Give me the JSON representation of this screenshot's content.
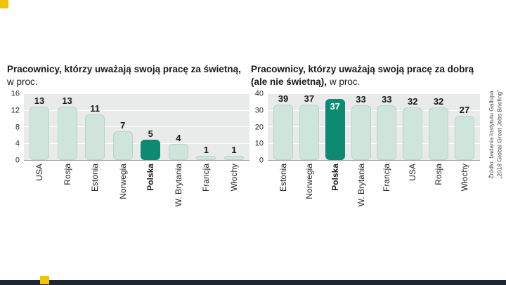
{
  "branding": {
    "accent_yellow": "#f2c300",
    "footer_bar_color": "#1d2733"
  },
  "source_note": "Źródło: badania Instytutu Gallupa\n„2018 Global Great Jobs Briefing”",
  "chart_data": [
    {
      "type": "bar",
      "title_bold": "Pracownicy, którzy uważają swoją pracę za świetną,",
      "title_regular": "w proc.",
      "categories": [
        "USA",
        "Rosja",
        "Estonia",
        "Norwegia",
        "Polska",
        "W. Brytania",
        "Francja",
        "Włochy"
      ],
      "values": [
        13,
        13,
        11,
        7,
        5,
        4,
        1,
        1
      ],
      "ylim": [
        0,
        16
      ],
      "yticks": [
        0,
        4,
        8,
        12,
        16
      ],
      "highlight_category": "Polska",
      "highlight_value_inside": false,
      "bar_color": "#cfe4da",
      "bar_border_color": "#b9d4c9",
      "highlight_color": "#0e8a72",
      "plot_background": "#e9ebea",
      "grid": true,
      "legend": false
    },
    {
      "type": "bar",
      "title_bold": "Pracownicy, którzy uważają swoją pracę za dobrą (ale nie świetną),",
      "title_regular": "w proc.",
      "categories": [
        "Estonia",
        "Norwegia",
        "Polska",
        "W. Brytania",
        "Francja",
        "USA",
        "Rosja",
        "Włochy"
      ],
      "values": [
        39,
        37,
        37,
        33,
        33,
        32,
        32,
        27
      ],
      "ylim": [
        0,
        40
      ],
      "yticks": [
        0,
        10,
        20,
        30,
        40
      ],
      "highlight_category": "Polska",
      "highlight_value_inside": true,
      "bar_color": "#cfe4da",
      "bar_border_color": "#b9d4c9",
      "highlight_color": "#0e8a72",
      "plot_background": "#e9ebea",
      "grid": true,
      "legend": false
    }
  ]
}
